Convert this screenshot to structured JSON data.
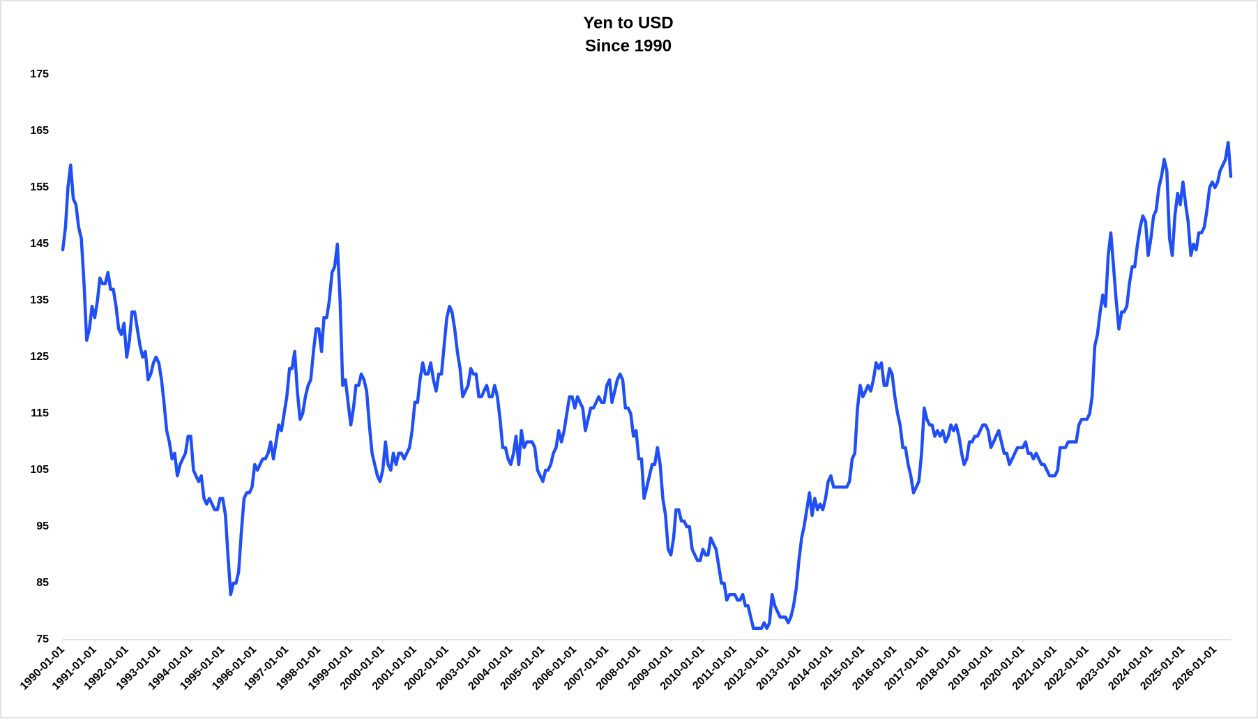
{
  "chart_data": {
    "type": "line",
    "title": "Yen to USD",
    "subtitle": "Since 1990",
    "color": "#1f4ff5",
    "grid": false,
    "ylim": [
      75,
      175
    ],
    "yticks": [
      75,
      85,
      95,
      105,
      115,
      125,
      135,
      145,
      155,
      165,
      175
    ],
    "xlim": [
      "1990-01-01",
      "2026-07-01"
    ],
    "xticks": [
      "1990-01-01",
      "1991-01-01",
      "1992-01-01",
      "1993-01-01",
      "1994-01-01",
      "1995-01-01",
      "1996-01-01",
      "1997-01-01",
      "1998-01-01",
      "1999-01-01",
      "2000-01-01",
      "2001-01-01",
      "2002-01-01",
      "2003-01-01",
      "2004-01-01",
      "2005-01-01",
      "2006-01-01",
      "2007-01-01",
      "2008-01-01",
      "2009-01-01",
      "2010-01-01",
      "2011-01-01",
      "2012-01-01",
      "2013-01-01",
      "2014-01-01",
      "2015-01-01",
      "2016-01-01",
      "2017-01-01",
      "2018-01-01",
      "2019-01-01",
      "2020-01-01",
      "2021-01-01",
      "2022-01-01",
      "2023-01-01",
      "2024-01-01",
      "2025-01-01",
      "2026-01-01"
    ],
    "x": [
      "1990-01-01",
      "1990-02-01",
      "1990-03-01",
      "1990-04-01",
      "1990-05-01",
      "1990-06-01",
      "1990-07-01",
      "1990-08-01",
      "1990-09-01",
      "1990-10-01",
      "1990-11-01",
      "1990-12-01",
      "1991-01-01",
      "1991-02-01",
      "1991-03-01",
      "1991-04-01",
      "1991-05-01",
      "1991-06-01",
      "1991-07-01",
      "1991-08-01",
      "1991-09-01",
      "1991-10-01",
      "1991-11-01",
      "1991-12-01",
      "1992-01-01",
      "1992-02-01",
      "1992-03-01",
      "1992-04-01",
      "1992-05-01",
      "1992-06-01",
      "1992-07-01",
      "1992-08-01",
      "1992-09-01",
      "1992-10-01",
      "1992-11-01",
      "1992-12-01",
      "1993-01-01",
      "1993-02-01",
      "1993-03-01",
      "1993-04-01",
      "1993-05-01",
      "1993-06-01",
      "1993-07-01",
      "1993-08-01",
      "1993-09-01",
      "1993-10-01",
      "1993-11-01",
      "1993-12-01",
      "1994-01-01",
      "1994-02-01",
      "1994-03-01",
      "1994-04-01",
      "1994-05-01",
      "1994-06-01",
      "1994-07-01",
      "1994-08-01",
      "1994-09-01",
      "1994-10-01",
      "1994-11-01",
      "1994-12-01",
      "1995-01-01",
      "1995-02-01",
      "1995-03-01",
      "1995-04-01",
      "1995-05-01",
      "1995-06-01",
      "1995-07-01",
      "1995-08-01",
      "1995-09-01",
      "1995-10-01",
      "1995-11-01",
      "1995-12-01",
      "1996-01-01",
      "1996-02-01",
      "1996-03-01",
      "1996-04-01",
      "1996-05-01",
      "1996-06-01",
      "1996-07-01",
      "1996-08-01",
      "1996-09-01",
      "1996-10-01",
      "1996-11-01",
      "1996-12-01",
      "1997-01-01",
      "1997-02-01",
      "1997-03-01",
      "1997-04-01",
      "1997-05-01",
      "1997-06-01",
      "1997-07-01",
      "1997-08-01",
      "1997-09-01",
      "1997-10-01",
      "1997-11-01",
      "1997-12-01",
      "1998-01-01",
      "1998-02-01",
      "1998-03-01",
      "1998-04-01",
      "1998-05-01",
      "1998-06-01",
      "1998-07-01",
      "1998-08-01",
      "1998-09-01",
      "1998-10-01",
      "1998-11-01",
      "1998-12-01",
      "1999-01-01",
      "1999-02-01",
      "1999-03-01",
      "1999-04-01",
      "1999-05-01",
      "1999-06-01",
      "1999-07-01",
      "1999-08-01",
      "1999-09-01",
      "1999-10-01",
      "1999-11-01",
      "1999-12-01",
      "2000-01-01",
      "2000-02-01",
      "2000-03-01",
      "2000-04-01",
      "2000-05-01",
      "2000-06-01",
      "2000-07-01",
      "2000-08-01",
      "2000-09-01",
      "2000-10-01",
      "2000-11-01",
      "2000-12-01",
      "2001-01-01",
      "2001-02-01",
      "2001-03-01",
      "2001-04-01",
      "2001-05-01",
      "2001-06-01",
      "2001-07-01",
      "2001-08-01",
      "2001-09-01",
      "2001-10-01",
      "2001-11-01",
      "2001-12-01",
      "2002-01-01",
      "2002-02-01",
      "2002-03-01",
      "2002-04-01",
      "2002-05-01",
      "2002-06-01",
      "2002-07-01",
      "2002-08-01",
      "2002-09-01",
      "2002-10-01",
      "2002-11-01",
      "2002-12-01",
      "2003-01-01",
      "2003-02-01",
      "2003-03-01",
      "2003-04-01",
      "2003-05-01",
      "2003-06-01",
      "2003-07-01",
      "2003-08-01",
      "2003-09-01",
      "2003-10-01",
      "2003-11-01",
      "2003-12-01",
      "2004-01-01",
      "2004-02-01",
      "2004-03-01",
      "2004-04-01",
      "2004-05-01",
      "2004-06-01",
      "2004-07-01",
      "2004-08-01",
      "2004-09-01",
      "2004-10-01",
      "2004-11-01",
      "2004-12-01",
      "2005-01-01",
      "2005-02-01",
      "2005-03-01",
      "2005-04-01",
      "2005-05-01",
      "2005-06-01",
      "2005-07-01",
      "2005-08-01",
      "2005-09-01",
      "2005-10-01",
      "2005-11-01",
      "2005-12-01",
      "2006-01-01",
      "2006-02-01",
      "2006-03-01",
      "2006-04-01",
      "2006-05-01",
      "2006-06-01",
      "2006-07-01",
      "2006-08-01",
      "2006-09-01",
      "2006-10-01",
      "2006-11-01",
      "2006-12-01",
      "2007-01-01",
      "2007-02-01",
      "2007-03-01",
      "2007-04-01",
      "2007-05-01",
      "2007-06-01",
      "2007-07-01",
      "2007-08-01",
      "2007-09-01",
      "2007-10-01",
      "2007-11-01",
      "2007-12-01",
      "2008-01-01",
      "2008-02-01",
      "2008-03-01",
      "2008-04-01",
      "2008-05-01",
      "2008-06-01",
      "2008-07-01",
      "2008-08-01",
      "2008-09-01",
      "2008-10-01",
      "2008-11-01",
      "2008-12-01",
      "2009-01-01",
      "2009-02-01",
      "2009-03-01",
      "2009-04-01",
      "2009-05-01",
      "2009-06-01",
      "2009-07-01",
      "2009-08-01",
      "2009-09-01",
      "2009-10-01",
      "2009-11-01",
      "2009-12-01",
      "2010-01-01",
      "2010-02-01",
      "2010-03-01",
      "2010-04-01",
      "2010-05-01",
      "2010-06-01",
      "2010-07-01",
      "2010-08-01",
      "2010-09-01",
      "2010-10-01",
      "2010-11-01",
      "2010-12-01",
      "2011-01-01",
      "2011-02-01",
      "2011-03-01",
      "2011-04-01",
      "2011-05-01",
      "2011-06-01",
      "2011-07-01",
      "2011-08-01",
      "2011-09-01",
      "2011-10-01",
      "2011-11-01",
      "2011-12-01",
      "2012-01-01",
      "2012-02-01",
      "2012-03-01",
      "2012-04-01",
      "2012-05-01",
      "2012-06-01",
      "2012-07-01",
      "2012-08-01",
      "2012-09-01",
      "2012-10-01",
      "2012-11-01",
      "2012-12-01",
      "2013-01-01",
      "2013-02-01",
      "2013-03-01",
      "2013-04-01",
      "2013-05-01",
      "2013-06-01",
      "2013-07-01",
      "2013-08-01",
      "2013-09-01",
      "2013-10-01",
      "2013-11-01",
      "2013-12-01",
      "2014-01-01",
      "2014-02-01",
      "2014-03-01",
      "2014-04-01",
      "2014-05-01",
      "2014-06-01",
      "2014-07-01",
      "2014-08-01",
      "2014-09-01",
      "2014-10-01",
      "2014-11-01",
      "2014-12-01",
      "2015-01-01",
      "2015-02-01",
      "2015-03-01",
      "2015-04-01",
      "2015-05-01",
      "2015-06-01",
      "2015-07-01",
      "2015-08-01",
      "2015-09-01",
      "2015-10-01",
      "2015-11-01",
      "2015-12-01",
      "2016-01-01",
      "2016-02-01",
      "2016-03-01",
      "2016-04-01",
      "2016-05-01",
      "2016-06-01",
      "2016-07-01",
      "2016-08-01",
      "2016-09-01",
      "2016-10-01",
      "2016-11-01",
      "2016-12-01",
      "2017-01-01",
      "2017-02-01",
      "2017-03-01",
      "2017-04-01",
      "2017-05-01",
      "2017-06-01",
      "2017-07-01",
      "2017-08-01",
      "2017-09-01",
      "2017-10-01",
      "2017-11-01",
      "2017-12-01",
      "2018-01-01",
      "2018-02-01",
      "2018-03-01",
      "2018-04-01",
      "2018-05-01",
      "2018-06-01",
      "2018-07-01",
      "2018-08-01",
      "2018-09-01",
      "2018-10-01",
      "2018-11-01",
      "2018-12-01",
      "2019-01-01",
      "2019-02-01",
      "2019-03-01",
      "2019-04-01",
      "2019-05-01",
      "2019-06-01",
      "2019-07-01",
      "2019-08-01",
      "2019-09-01",
      "2019-10-01",
      "2019-11-01",
      "2019-12-01",
      "2020-01-01",
      "2020-02-01",
      "2020-03-01",
      "2020-04-01",
      "2020-05-01",
      "2020-06-01",
      "2020-07-01",
      "2020-08-01",
      "2020-09-01",
      "2020-10-01",
      "2020-11-01",
      "2020-12-01",
      "2021-01-01",
      "2021-02-01",
      "2021-03-01",
      "2021-04-01",
      "2021-05-01",
      "2021-06-01",
      "2021-07-01",
      "2021-08-01",
      "2021-09-01",
      "2021-10-01",
      "2021-11-01",
      "2021-12-01",
      "2022-01-01",
      "2022-02-01",
      "2022-03-01",
      "2022-04-01",
      "2022-05-01",
      "2022-06-01",
      "2022-07-01",
      "2022-08-01",
      "2022-09-01",
      "2022-10-01",
      "2022-11-01",
      "2022-12-01",
      "2023-01-01",
      "2023-02-01",
      "2023-03-01",
      "2023-04-01",
      "2023-05-01",
      "2023-06-01",
      "2023-07-01",
      "2023-08-01",
      "2023-09-01",
      "2023-10-01",
      "2023-11-01",
      "2023-12-01",
      "2024-01-01",
      "2024-02-01",
      "2024-03-01",
      "2024-04-01",
      "2024-05-01",
      "2024-06-01",
      "2024-07-01",
      "2024-08-01",
      "2024-09-01",
      "2024-10-01",
      "2024-11-01",
      "2024-12-01",
      "2025-01-01",
      "2025-02-01",
      "2025-03-01",
      "2025-04-01",
      "2025-05-01",
      "2025-06-01",
      "2025-07-01",
      "2025-08-01",
      "2025-09-01",
      "2025-10-01",
      "2025-11-01",
      "2025-12-01",
      "2026-01-01",
      "2026-02-01",
      "2026-03-01",
      "2026-04-01",
      "2026-05-01",
      "2026-06-01",
      "2026-07-01"
    ],
    "values": [
      144,
      148,
      155,
      159,
      153,
      152,
      148,
      146,
      138,
      128,
      130,
      134,
      132,
      135,
      139,
      138,
      138,
      140,
      137,
      137,
      134,
      130,
      129,
      131,
      125,
      128,
      133,
      133,
      130,
      127,
      125,
      126,
      121,
      122,
      124,
      125,
      124,
      121,
      117,
      112,
      110,
      107,
      108,
      104,
      106,
      107,
      108,
      111,
      111,
      105,
      104,
      103,
      104,
      100,
      99,
      100,
      99,
      98,
      98,
      100,
      100,
      97,
      90,
      83,
      85,
      85,
      87,
      94,
      100,
      101,
      101,
      102,
      106,
      105,
      106,
      107,
      107,
      108,
      110,
      107,
      110,
      113,
      112,
      115,
      118,
      123,
      123,
      126,
      119,
      114,
      115,
      118,
      120,
      121,
      126,
      130,
      130,
      126,
      132,
      132,
      135,
      140,
      141,
      145,
      135,
      120,
      121,
      117,
      113,
      116,
      120,
      120,
      122,
      121,
      119,
      113,
      108,
      106,
      104,
      103,
      105,
      110,
      106,
      105,
      108,
      106,
      108,
      108,
      107,
      108,
      109,
      112,
      117,
      117,
      121,
      124,
      122,
      122,
      124,
      121,
      119,
      122,
      122,
      127,
      132,
      134,
      133,
      130,
      126,
      123,
      118,
      119,
      120,
      123,
      122,
      122,
      118,
      118,
      119,
      120,
      118,
      118,
      120,
      118,
      114,
      109,
      109,
      107,
      106,
      108,
      111,
      106,
      112,
      109,
      110,
      110,
      110,
      109,
      105,
      104,
      103,
      105,
      105,
      106,
      108,
      109,
      112,
      110,
      112,
      115,
      118,
      118,
      116,
      118,
      117,
      116,
      112,
      114,
      116,
      116,
      117,
      118,
      117,
      117,
      120,
      121,
      117,
      119,
      121,
      122,
      121,
      116,
      116,
      115,
      111,
      112,
      107,
      107,
      100,
      102,
      104,
      106,
      106,
      109,
      106,
      100,
      97,
      91,
      90,
      93,
      98,
      98,
      96,
      96,
      95,
      95,
      91,
      90,
      89,
      89,
      91,
      90,
      90,
      93,
      92,
      91,
      88,
      85,
      85,
      82,
      83,
      83,
      83,
      82,
      82,
      83,
      81,
      81,
      79,
      77,
      77,
      77,
      77,
      78,
      77,
      78,
      83,
      81,
      80,
      79,
      79,
      79,
      78,
      79,
      81,
      84,
      89,
      93,
      95,
      98,
      101,
      97,
      100,
      98,
      99,
      98,
      100,
      103,
      104,
      102,
      102,
      102,
      102,
      102,
      102,
      103,
      107,
      108,
      116,
      120,
      118,
      119,
      120,
      119,
      121,
      124,
      123,
      124,
      120,
      120,
      123,
      122,
      118,
      115,
      113,
      109,
      109,
      106,
      104,
      101,
      102,
      103,
      108,
      116,
      114,
      113,
      113,
      111,
      112,
      111,
      112,
      110,
      111,
      113,
      112,
      113,
      111,
      108,
      106,
      107,
      110,
      110,
      111,
      111,
      112,
      113,
      113,
      112,
      109,
      110,
      111,
      112,
      110,
      108,
      108,
      106,
      107,
      108,
      109,
      109,
      109,
      110,
      108,
      108,
      107,
      108,
      107,
      106,
      106,
      105,
      104,
      104,
      104,
      105,
      109,
      109,
      109,
      110,
      110,
      110,
      110,
      113,
      114,
      114,
      114,
      115,
      118,
      127,
      129,
      133,
      136,
      134,
      143,
      147,
      141,
      135,
      130,
      133,
      133,
      134,
      138,
      141,
      141,
      145,
      148,
      150,
      149,
      143,
      146,
      150,
      151,
      155,
      157,
      160,
      158,
      146,
      143,
      150,
      154,
      152,
      156,
      152,
      149,
      143,
      145,
      144,
      147,
      147,
      148,
      151,
      155,
      156,
      155,
      156,
      158,
      159,
      160,
      163,
      157
    ]
  }
}
